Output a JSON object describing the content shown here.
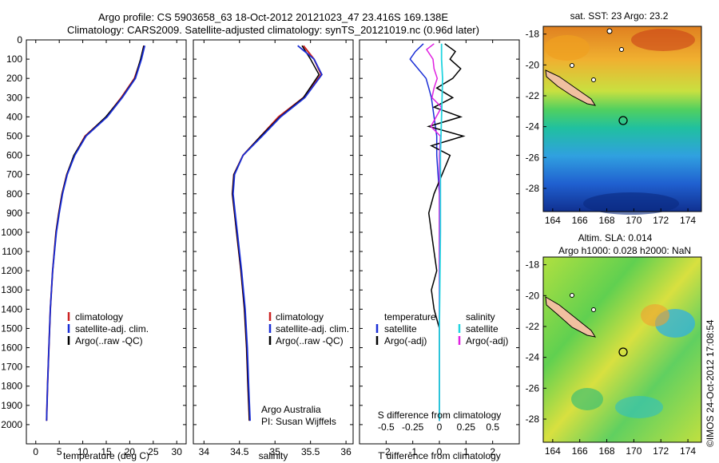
{
  "title": {
    "line1": "Argo profile: CS 5903658_63 18-Oct-2012 20121023_47 23.416S 169.138E",
    "line2": "Climatology: CARS2009. Satellite-adjusted climatology: synTS_20121019.nc (0.96d later)"
  },
  "colors": {
    "climatology": "#cc2222",
    "satellite": "#1a2ed6",
    "argo": "#000000",
    "sal_satellite": "#22d4e0",
    "sal_argo": "#e020e0"
  },
  "chart_data": [
    {
      "type": "line",
      "name": "temperature",
      "xlabel": "temperature (deg C)",
      "xticks": [
        0,
        5,
        10,
        15,
        20,
        25,
        30
      ],
      "xlim": [
        -2,
        32
      ],
      "ylim": [
        2100,
        0
      ],
      "yticks": [
        0,
        100,
        200,
        300,
        400,
        500,
        600,
        700,
        800,
        900,
        1000,
        1100,
        1200,
        1300,
        1400,
        1500,
        1600,
        1700,
        1800,
        1900,
        2000
      ],
      "legend": [
        "climatology",
        "satellite-adj. clim.",
        "Argo(..raw -QC)"
      ],
      "series": [
        {
          "name": "climatology",
          "depth": [
            30,
            100,
            200,
            300,
            400,
            500,
            600,
            700,
            800,
            900,
            1000,
            1200,
            1400,
            1600,
            1800,
            1980
          ],
          "values": [
            23.0,
            22.4,
            21.0,
            18.2,
            15.0,
            10.5,
            8.2,
            6.6,
            5.6,
            4.9,
            4.3,
            3.6,
            3.1,
            2.8,
            2.5,
            2.3
          ]
        },
        {
          "name": "satellite-adj. clim.",
          "depth": [
            30,
            100,
            200,
            300,
            400,
            500,
            600,
            700,
            800,
            900,
            1000,
            1200,
            1400,
            1600,
            1800,
            1980
          ],
          "values": [
            23.2,
            22.5,
            21.2,
            18.4,
            15.2,
            10.7,
            8.3,
            6.7,
            5.7,
            5.0,
            4.4,
            3.6,
            3.1,
            2.8,
            2.5,
            2.3
          ]
        },
        {
          "name": "Argo(..raw -QC)",
          "depth": [
            30,
            100,
            200,
            300,
            400,
            500,
            600,
            700,
            800,
            900,
            1000,
            1200,
            1400,
            1600,
            1800,
            1980
          ],
          "values": [
            23.0,
            22.3,
            21.1,
            18.3,
            14.9,
            10.6,
            8.1,
            6.6,
            5.6,
            4.9,
            4.3,
            3.6,
            3.1,
            2.8,
            2.5,
            2.3
          ]
        }
      ]
    },
    {
      "type": "line",
      "name": "salinity",
      "xlabel": "salinity",
      "xticks": [
        34,
        34.5,
        35,
        35.5,
        36
      ],
      "xlim": [
        33.85,
        36.1
      ],
      "ylim": [
        2100,
        0
      ],
      "legend": [
        "climatology",
        "satellite-adj. clim.",
        "Argo(..raw -QC)"
      ],
      "annotation": [
        "Argo Australia",
        "PI: Susan Wijffels"
      ],
      "series": [
        {
          "name": "climatology",
          "depth": [
            30,
            100,
            180,
            300,
            400,
            500,
            600,
            700,
            800,
            900,
            1000,
            1200,
            1400,
            1600,
            1800,
            1980
          ],
          "values": [
            35.4,
            35.55,
            35.65,
            35.4,
            35.05,
            34.8,
            34.55,
            34.42,
            34.4,
            34.43,
            34.46,
            34.52,
            34.57,
            34.6,
            34.62,
            34.64
          ]
        },
        {
          "name": "satellite-adj. clim.",
          "depth": [
            30,
            100,
            180,
            300,
            400,
            500,
            600,
            700,
            800,
            900,
            1000,
            1200,
            1400,
            1600,
            1800,
            1980
          ],
          "values": [
            35.32,
            35.55,
            35.66,
            35.42,
            35.08,
            34.82,
            34.55,
            34.43,
            34.41,
            34.44,
            34.47,
            34.53,
            34.58,
            34.61,
            34.63,
            34.65
          ]
        },
        {
          "name": "Argo(..raw -QC)",
          "depth": [
            30,
            100,
            180,
            300,
            400,
            500,
            600,
            700,
            800,
            900,
            1000,
            1200,
            1400,
            1600,
            1800,
            1980
          ],
          "values": [
            35.38,
            35.5,
            35.62,
            35.4,
            35.07,
            34.8,
            34.55,
            34.42,
            34.4,
            34.43,
            34.46,
            34.52,
            34.57,
            34.6,
            34.62,
            34.64
          ]
        }
      ]
    },
    {
      "type": "line",
      "name": "differences",
      "xlabel_top": "S difference from climatology",
      "s_ticks": [
        "-0.5",
        "-0.25",
        "0",
        "0.25",
        "0.5"
      ],
      "xlabel": "T difference from climatology",
      "xticks": [
        -2,
        -1,
        0,
        1,
        2
      ],
      "xlim": [
        -3,
        3
      ],
      "ylim": [
        2100,
        0
      ],
      "legend_left_title": "temperature",
      "legend_right_title": "salinity",
      "legend": [
        "satellite",
        "Argo(-adj)",
        "satellite",
        "Argo(-adj)"
      ],
      "series": [
        {
          "name": "T satellite",
          "depth": [
            20,
            60,
            100,
            150,
            200,
            250,
            300,
            400,
            500,
            600,
            800,
            1000,
            1500,
            1980
          ],
          "values": [
            -0.6,
            -0.9,
            -1.1,
            -0.8,
            -0.5,
            -0.4,
            -0.3,
            -0.2,
            -0.1,
            -0.1,
            0,
            0,
            0,
            0
          ]
        },
        {
          "name": "T Argo(-adj)",
          "depth": [
            20,
            60,
            100,
            150,
            200,
            250,
            300,
            350,
            400,
            450,
            500,
            550,
            600,
            700,
            800,
            900,
            1000,
            1100,
            1200,
            1300,
            1400,
            1500,
            1600,
            1800,
            1980
          ],
          "values": [
            0.2,
            0.6,
            0.4,
            0.8,
            0.5,
            -0.1,
            0.5,
            -0.2,
            0.8,
            -0.4,
            0.9,
            -0.3,
            0.4,
            0.1,
            -0.2,
            -0.4,
            -0.3,
            -0.2,
            -0.1,
            -0.3,
            -0.2,
            0,
            0,
            0,
            0
          ]
        },
        {
          "name": "S satellite",
          "depth": [
            20,
            100,
            200,
            400,
            600,
            800,
            1000,
            1500,
            1980
          ],
          "values": [
            0.02,
            0.02,
            0.03,
            0.02,
            0.01,
            0.01,
            0.01,
            0.0,
            0.0
          ]
        },
        {
          "name": "S Argo(-adj)",
          "depth": [
            20,
            50,
            100,
            150,
            200,
            250,
            300,
            350,
            400,
            450,
            500,
            600,
            800,
            1000,
            1500,
            1980
          ],
          "values": [
            -0.05,
            -0.12,
            -0.06,
            -0.05,
            -0.02,
            -0.05,
            -0.07,
            0.02,
            -0.03,
            -0.08,
            0.01,
            0.0,
            0.0,
            0.0,
            0.0,
            0.0
          ]
        }
      ]
    }
  ],
  "maps": {
    "sst": {
      "title": "sat. SST: 23 Argo: 23.2",
      "lat_ticks": [
        "-18",
        "-20",
        "-22",
        "-24",
        "-26",
        "-28"
      ],
      "lon_ticks": [
        "164",
        "166",
        "168",
        "170",
        "172",
        "174"
      ]
    },
    "sla": {
      "title_line1": "Altim. SLA: 0.014",
      "title_line2": "Argo h1000: 0.028 h2000: NaN",
      "lat_ticks": [
        "-18",
        "-20",
        "-22",
        "-24",
        "-26",
        "-28"
      ],
      "lon_ticks": [
        "164",
        "166",
        "168",
        "170",
        "172",
        "174"
      ]
    }
  },
  "footer": "©IMOS 24-Oct-2012 17:08:54"
}
